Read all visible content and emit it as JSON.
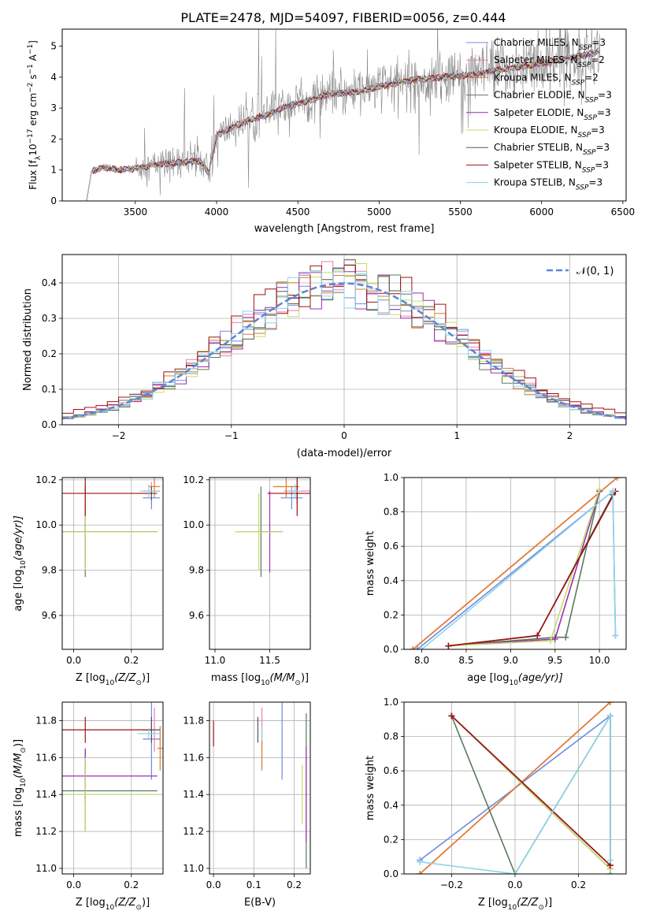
{
  "title": "PLATE=2478, MJD=54097, FIBERID=0056, z=0.444",
  "model_colors": [
    "#6b8cde",
    "#ef7ab6",
    "#e07a2a",
    "#5b7a5b",
    "#9b2fae",
    "#c6dc6b",
    "#555555",
    "#a01010",
    "#8fd3e8"
  ],
  "chart_data": [
    {
      "id": "spectrum",
      "type": "line",
      "xlabel": "wavelength [Angstrom, rest frame]",
      "ylabel_main": "Flux [f",
      "ylabel_sub": "λ",
      "ylabel_rest": "10",
      "ylabel_exp": "−17",
      "ylabel_unit": " erg cm",
      "ylabel_exp2": "−2",
      "ylabel_s": " s",
      "ylabel_exp3": "−1",
      "ylabel_A": " A",
      "ylabel_exp4": "−1",
      "ylabel_end": "]",
      "xlim": [
        3050,
        6520
      ],
      "ylim": [
        0,
        5.55
      ],
      "xticks": [
        3500,
        4000,
        4500,
        5000,
        5500,
        6000,
        6500
      ],
      "yticks": [
        0,
        1,
        2,
        3,
        4,
        5
      ],
      "legend_position": "top-right",
      "legend": [
        {
          "main": "Chabrier MILES, N",
          "sub": "SSP",
          "tail": "=3"
        },
        {
          "main": "Salpeter MILES, N",
          "sub": "SSP",
          "tail": "=2"
        },
        {
          "main": "Kroupa MILES, N",
          "sub": "SSP",
          "tail": "=2"
        },
        {
          "main": "Chabrier ELODIE, N",
          "sub": "SSP",
          "tail": "=3"
        },
        {
          "main": "Salpeter ELODIE, N",
          "sub": "SSP",
          "tail": "=3"
        },
        {
          "main": "Kroupa ELODIE, N",
          "sub": "SSP",
          "tail": "=3"
        },
        {
          "main": "Chabrier STELIB, N",
          "sub": "SSP",
          "tail": "=3"
        },
        {
          "main": "Salpeter STELIB, N",
          "sub": "SSP",
          "tail": "=3"
        },
        {
          "main": "Kroupa STELIB, N",
          "sub": "SSP",
          "tail": "=3"
        }
      ],
      "model_trend": {
        "x": [
          3200,
          3230,
          3300,
          3400,
          3500,
          3600,
          3700,
          3800,
          3900,
          3950,
          4000,
          4100,
          4200,
          4300,
          4400,
          4500,
          4600,
          4700,
          4800,
          4900,
          5000,
          5100,
          5200,
          5300,
          5400,
          5500,
          5600,
          5700,
          5800,
          5900,
          6000,
          6100,
          6200,
          6300,
          6360
        ],
        "y": [
          0.0,
          0.95,
          1.1,
          1.0,
          1.05,
          1.15,
          1.2,
          1.25,
          1.3,
          0.9,
          2.1,
          2.4,
          2.6,
          2.75,
          3.0,
          3.15,
          3.3,
          3.45,
          3.5,
          3.55,
          3.7,
          3.8,
          3.9,
          3.95,
          4.0,
          4.05,
          4.1,
          4.2,
          4.3,
          4.35,
          4.45,
          4.55,
          4.65,
          4.75,
          4.85
        ]
      },
      "data_start": 3500,
      "data_end": 6360
    },
    {
      "id": "residuals",
      "type": "line",
      "xlabel": "(data-model)/error",
      "ylabel": "Normed distribution",
      "xlim": [
        -2.5,
        2.5
      ],
      "ylim": [
        0,
        0.48
      ],
      "xticks": [
        -2,
        -1,
        0,
        1,
        2
      ],
      "yticks": [
        0.0,
        0.1,
        0.2,
        0.3,
        0.4
      ],
      "grid": true,
      "legend_position": "top-right",
      "legend_label": "𝒩(0, 1)",
      "reference_curve": "normal(0,1)",
      "bin_width": 0.1
    },
    {
      "id": "age_vs_Z",
      "type": "scatter",
      "xlabel": "Z [log",
      "xlabel_sub": "10",
      "xlabel_rest": "(Z/Z",
      "xlabel_end": ")]",
      "ylabel": "age  [log",
      "ylabel_sub": "10",
      "ylabel_rest": "(age/yr)]",
      "xlim": [
        -0.04,
        0.31
      ],
      "ylim": [
        9.45,
        10.21
      ],
      "xticks": [
        0.0,
        0.2
      ],
      "yticks": [
        9.6,
        9.8,
        10.0,
        10.2
      ],
      "grid": true,
      "points": [
        {
          "series": 0,
          "x": 0.27,
          "y": 10.12,
          "xerr": 0.03,
          "yerr": 0.05
        },
        {
          "series": 1,
          "x": 0.27,
          "y": 10.15,
          "xerr": 0.03,
          "yerr": 0.04
        },
        {
          "series": 2,
          "x": 0.28,
          "y": 10.17,
          "xerr": 0.02,
          "yerr": 0.05
        },
        {
          "series": 3,
          "x": 0.04,
          "y": 9.97,
          "xerr": 0.25,
          "yerr": 0.2
        },
        {
          "series": 4,
          "x": 0.04,
          "y": 9.97,
          "xerr": 0.25,
          "yerr": 0.15
        },
        {
          "series": 5,
          "x": 0.04,
          "y": 9.97,
          "xerr": 0.25,
          "yerr": 0.17
        },
        {
          "series": 6,
          "x": 0.27,
          "y": 10.14,
          "xerr": 0.02,
          "yerr": 0.03
        },
        {
          "series": 7,
          "x": 0.04,
          "y": 10.14,
          "xerr": 0.23,
          "yerr": 0.1
        },
        {
          "series": 8,
          "x": 0.26,
          "y": 10.15,
          "xerr": 0.03,
          "yerr": 0.03
        }
      ]
    },
    {
      "id": "age_vs_mass",
      "type": "scatter",
      "xlabel": "mass [log",
      "xlabel_sub": "10",
      "xlabel_rest": "(M/M",
      "xlabel_end": ")]",
      "xlim": [
        10.95,
        11.87
      ],
      "ylim": [
        9.45,
        10.21
      ],
      "xticks": [
        11.0,
        11.5
      ],
      "yticks": [
        9.6,
        9.8,
        10.0,
        10.2
      ],
      "grid": true,
      "points": [
        {
          "series": 0,
          "x": 11.7,
          "y": 10.12,
          "xerr": 0.1,
          "yerr": 0.05
        },
        {
          "series": 1,
          "x": 11.75,
          "y": 10.15,
          "xerr": 0.12,
          "yerr": 0.06
        },
        {
          "series": 2,
          "x": 11.65,
          "y": 10.17,
          "xerr": 0.12,
          "yerr": 0.05
        },
        {
          "series": 3,
          "x": 11.42,
          "y": 9.97,
          "xerr": 0.2,
          "yerr": 0.2
        },
        {
          "series": 4,
          "x": 11.5,
          "y": 9.97,
          "xerr": 0.1,
          "yerr": 0.18
        },
        {
          "series": 5,
          "x": 11.4,
          "y": 9.97,
          "xerr": 0.22,
          "yerr": 0.17
        },
        {
          "series": 6,
          "x": 11.75,
          "y": 10.14,
          "xerr": 0.03,
          "yerr": 0.03
        },
        {
          "series": 7,
          "x": 11.75,
          "y": 10.14,
          "xerr": 0.27,
          "yerr": 0.1
        },
        {
          "series": 8,
          "x": 11.73,
          "y": 10.15,
          "xerr": 0.05,
          "yerr": 0.03
        }
      ]
    },
    {
      "id": "weight_vs_age",
      "type": "line",
      "xlabel": "age  [log",
      "xlabel_sub": "10",
      "xlabel_rest": "(age/yr)]",
      "ylabel": "mass weight",
      "xlim": [
        7.8,
        10.3
      ],
      "ylim": [
        0,
        1.0
      ],
      "xticks": [
        8.0,
        8.5,
        9.0,
        9.5,
        10.0
      ],
      "yticks": [
        0.0,
        0.2,
        0.4,
        0.6,
        0.8,
        1.0
      ],
      "grid": true,
      "series": [
        {
          "series": 0,
          "x": [
            7.95,
            10.15,
            10.18
          ],
          "y": [
            0.0,
            0.92,
            0.08
          ]
        },
        {
          "series": 1,
          "x": [
            7.9,
            10.2
          ],
          "y": [
            0.0,
            1.0
          ]
        },
        {
          "series": 2,
          "x": [
            7.9,
            10.2
          ],
          "y": [
            0.0,
            1.0
          ]
        },
        {
          "series": 3,
          "x": [
            8.3,
            9.5,
            9.62,
            10.0
          ],
          "y": [
            0.02,
            0.07,
            0.07,
            0.92
          ]
        },
        {
          "series": 4,
          "x": [
            8.3,
            9.5,
            10.0
          ],
          "y": [
            0.02,
            0.06,
            0.92
          ]
        },
        {
          "series": 5,
          "x": [
            8.3,
            9.45,
            10.0
          ],
          "y": [
            0.02,
            0.05,
            0.93
          ]
        },
        {
          "series": 6,
          "x": [
            8.3,
            9.3,
            10.15
          ],
          "y": [
            0.02,
            0.08,
            0.9
          ]
        },
        {
          "series": 7,
          "x": [
            8.3,
            9.3,
            10.18
          ],
          "y": [
            0.02,
            0.08,
            0.92
          ]
        },
        {
          "series": 8,
          "x": [
            8.0,
            10.15,
            10.18
          ],
          "y": [
            0.0,
            0.92,
            0.08
          ]
        }
      ]
    },
    {
      "id": "mass_vs_Z",
      "type": "scatter",
      "xlabel": "Z [log",
      "xlabel_sub": "10",
      "xlabel_rest": "(Z/Z",
      "xlabel_end": ")]",
      "ylabel": "mass [log",
      "ylabel_sub": "10",
      "ylabel_rest": "(M/M",
      "ylabel_end": ")]",
      "xlim": [
        -0.04,
        0.31
      ],
      "ylim": [
        10.97,
        11.9
      ],
      "xticks": [
        0.0,
        0.2
      ],
      "yticks": [
        11.0,
        11.2,
        11.4,
        11.6,
        11.8
      ],
      "grid": true,
      "points": [
        {
          "series": 0,
          "x": 0.27,
          "y": 11.7,
          "xerr": 0.03,
          "yerr": 0.22
        },
        {
          "series": 1,
          "x": 0.28,
          "y": 11.75,
          "xerr": 0.02,
          "yerr": 0.12
        },
        {
          "series": 2,
          "x": 0.3,
          "y": 11.65,
          "xerr": 0.01,
          "yerr": 0.12
        },
        {
          "series": 3,
          "x": 0.04,
          "y": 11.42,
          "xerr": 0.25,
          "yerr": 0.22
        },
        {
          "series": 4,
          "x": 0.04,
          "y": 11.5,
          "xerr": 0.25,
          "yerr": 0.15
        },
        {
          "series": 5,
          "x": 0.04,
          "y": 11.4,
          "xerr": 0.25,
          "yerr": 0.2
        },
        {
          "series": 6,
          "x": 0.27,
          "y": 11.75,
          "xerr": 0.03,
          "yerr": 0.07
        },
        {
          "series": 7,
          "x": 0.04,
          "y": 11.75,
          "xerr": 0.23,
          "yerr": 0.07
        },
        {
          "series": 8,
          "x": 0.26,
          "y": 11.73,
          "xerr": 0.04,
          "yerr": 0.03
        }
      ]
    },
    {
      "id": "mass_vs_EBV",
      "type": "scatter",
      "xlabel": "E(B-V)",
      "xlim": [
        -0.01,
        0.24
      ],
      "ylim": [
        10.97,
        11.9
      ],
      "xticks": [
        0.0,
        0.1,
        0.2
      ],
      "yticks": [
        11.0,
        11.2,
        11.4,
        11.6,
        11.8
      ],
      "grid": true,
      "points": [
        {
          "series": 0,
          "x": 0.17,
          "y": 11.7,
          "yerr": 0.22
        },
        {
          "series": 1,
          "x": 0.12,
          "y": 11.75,
          "yerr": 0.12
        },
        {
          "series": 2,
          "x": 0.12,
          "y": 11.65,
          "yerr": 0.12
        },
        {
          "series": 3,
          "x": 0.23,
          "y": 11.42,
          "yerr": 0.42
        },
        {
          "series": 4,
          "x": 0.23,
          "y": 11.4,
          "yerr": 0.26
        },
        {
          "series": 5,
          "x": 0.22,
          "y": 11.4,
          "yerr": 0.16
        },
        {
          "series": 6,
          "x": 0.11,
          "y": 11.75,
          "yerr": 0.07
        },
        {
          "series": 7,
          "x": 0.0,
          "y": 11.73,
          "yerr": 0.07
        },
        {
          "series": 8,
          "x": 0.12,
          "y": 11.73,
          "yerr": 0.04
        }
      ]
    },
    {
      "id": "weight_vs_Z",
      "type": "line",
      "xlabel": "Z [log",
      "xlabel_sub": "10",
      "xlabel_rest": "(Z/Z",
      "xlabel_end": ")]",
      "ylabel": "mass weight",
      "xlim": [
        -0.35,
        0.35
      ],
      "ylim": [
        0,
        1.0
      ],
      "xticks": [
        -0.2,
        0.0,
        0.2
      ],
      "yticks": [
        0.0,
        0.2,
        0.4,
        0.6,
        0.8,
        1.0
      ],
      "grid": true,
      "series": [
        {
          "series": 0,
          "x": [
            -0.3,
            0.3,
            0.3
          ],
          "y": [
            0.08,
            0.92,
            0.0
          ]
        },
        {
          "series": 1,
          "x": [
            -0.3,
            0.3
          ],
          "y": [
            0.0,
            1.0
          ]
        },
        {
          "series": 2,
          "x": [
            -0.3,
            0.3
          ],
          "y": [
            0.0,
            1.0
          ]
        },
        {
          "series": 3,
          "x": [
            -0.2,
            0.0,
            0.3,
            0.3
          ],
          "y": [
            0.92,
            0.0,
            0.92,
            0.05
          ]
        },
        {
          "series": 4,
          "x": [
            -0.2,
            0.3
          ],
          "y": [
            0.92,
            0.03
          ]
        },
        {
          "series": 5,
          "x": [
            -0.2,
            0.3
          ],
          "y": [
            0.92,
            0.03
          ]
        },
        {
          "series": 6,
          "x": [
            -0.2,
            0.3
          ],
          "y": [
            0.92,
            0.05
          ]
        },
        {
          "series": 7,
          "x": [
            -0.2,
            0.3
          ],
          "y": [
            0.92,
            0.05
          ]
        },
        {
          "series": 8,
          "x": [
            -0.3,
            0.0,
            0.3,
            0.3
          ],
          "y": [
            0.07,
            0.0,
            0.92,
            0.08
          ]
        }
      ]
    }
  ]
}
